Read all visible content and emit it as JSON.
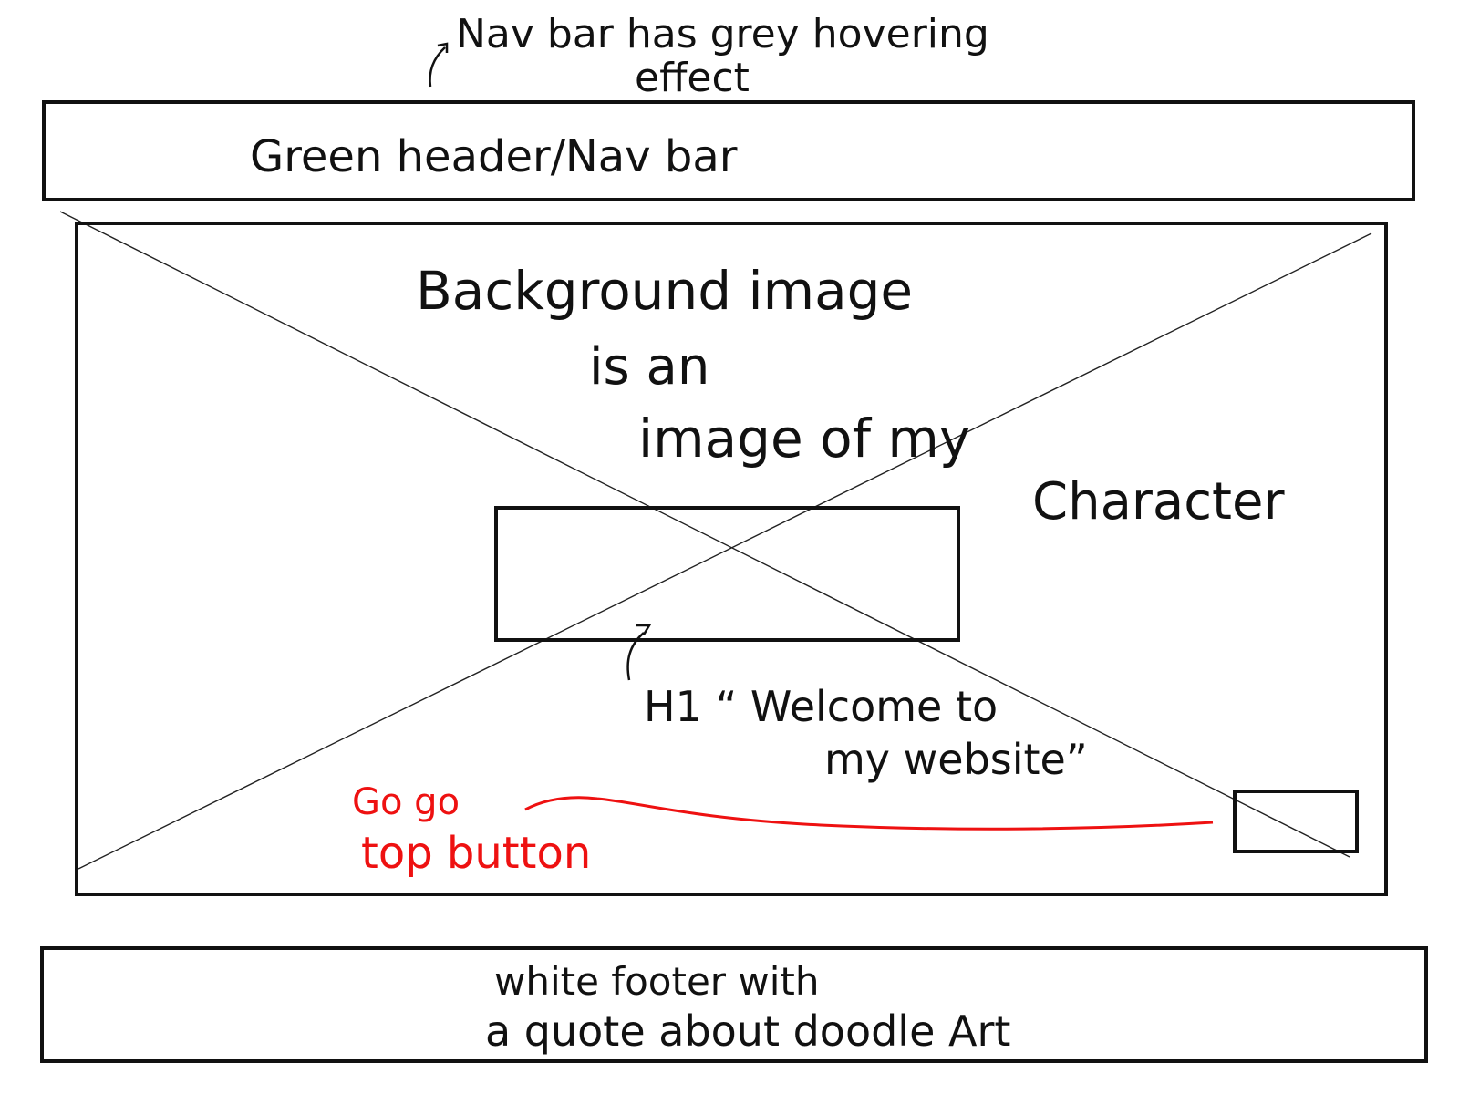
{
  "annotations": {
    "nav_hover_note_line1": "Nav bar has grey hovering",
    "nav_hover_note_line2": "effect",
    "header_label": "Green header/Nav bar",
    "background_note_line1": "Background image",
    "background_note_line2": "is an",
    "background_note_line3": "image of my",
    "background_note_line4": "Character",
    "h1_note_line1": "H1 “ Welcome to",
    "h1_note_line2": "my website”",
    "top_button_note_line1": "Go go",
    "top_button_note_line2": "top button",
    "footer_label_line1": "white footer with",
    "footer_label_line2": "a quote about doodle Art"
  },
  "colors": {
    "ink": "#111111",
    "red_annotation": "#ee1111",
    "paper": "#ffffff"
  }
}
